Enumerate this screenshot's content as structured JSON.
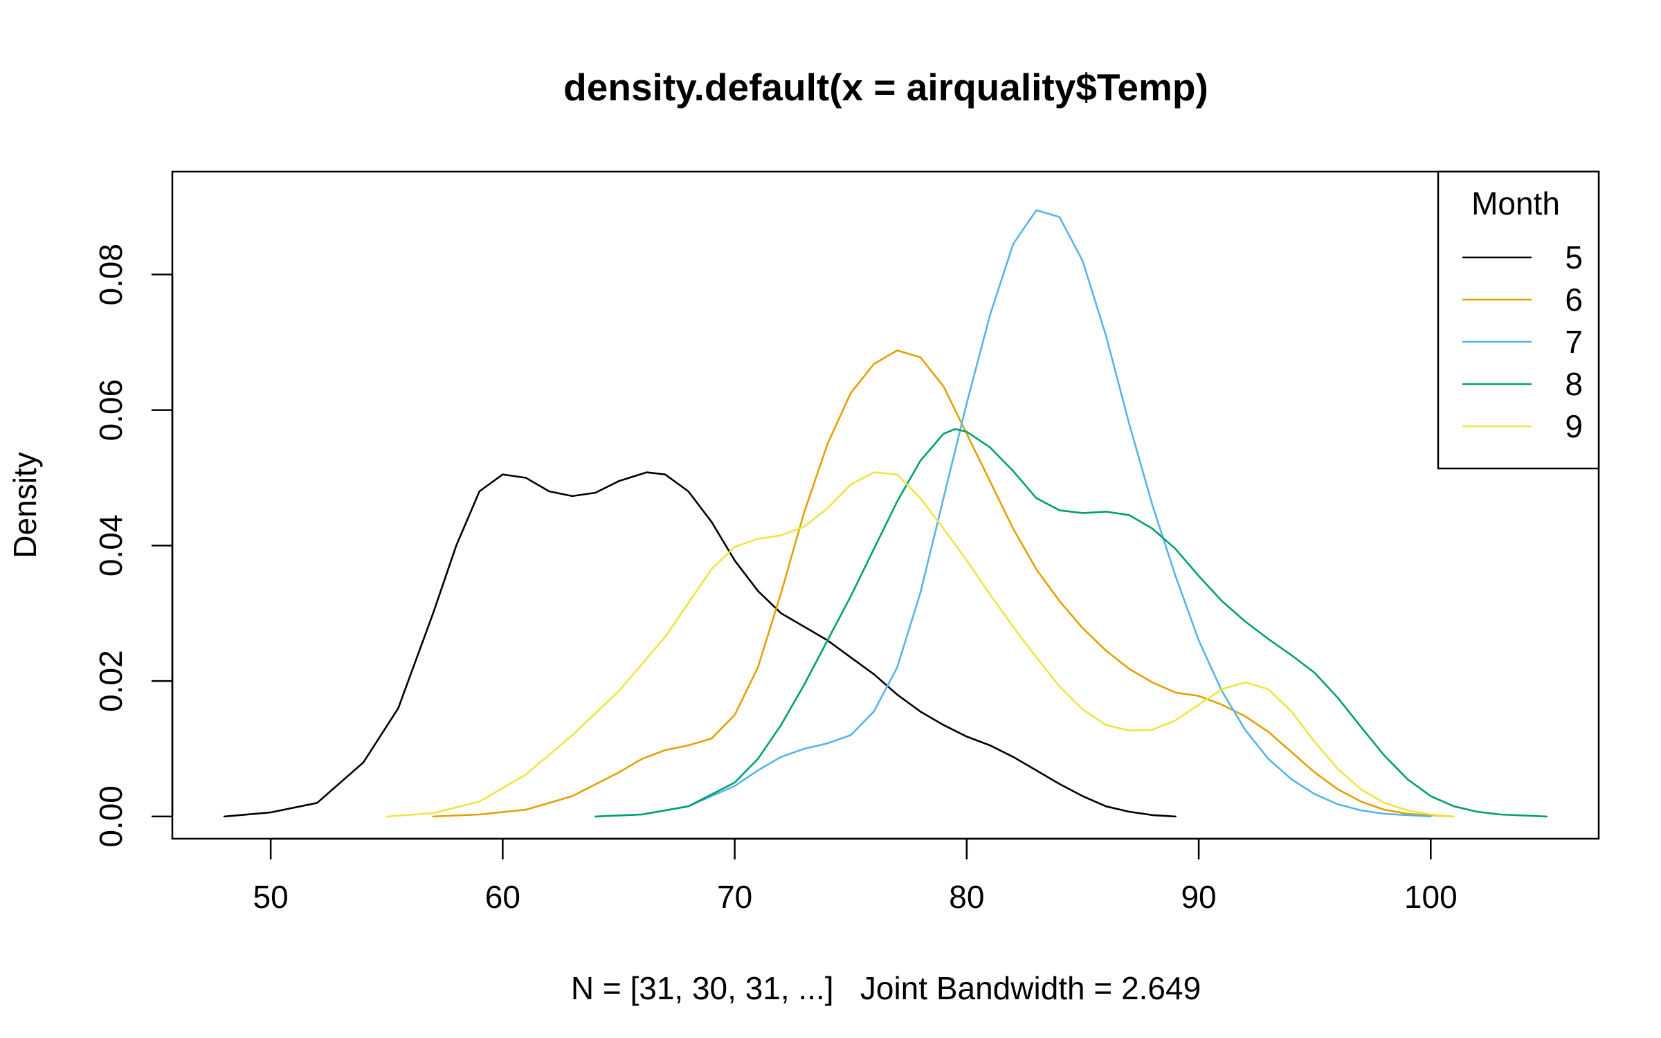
{
  "chart_data": {
    "type": "line",
    "title": "density.default(x = airquality$Temp)",
    "xlabel": "N = [31, 30, 31, ...]   Joint Bandwidth = 2.649",
    "ylabel": "Density",
    "xlim": [
      45.76,
      107.24
    ],
    "ylim": [
      -0.00328,
      0.0952
    ],
    "x_ticks": [
      50,
      60,
      70,
      80,
      90,
      100
    ],
    "x_tick_labels": [
      "50",
      "60",
      "70",
      "80",
      "90",
      "100"
    ],
    "y_ticks": [
      0.0,
      0.02,
      0.04,
      0.06,
      0.08
    ],
    "y_tick_labels": [
      "0.00",
      "0.02",
      "0.04",
      "0.06",
      "0.08"
    ],
    "grid": false,
    "legend": {
      "title": "Month",
      "position": "top-right"
    },
    "series": [
      {
        "name": "5",
        "color": "#000000",
        "points": [
          [
            48.0,
            0.0
          ],
          [
            50.0,
            0.0006
          ],
          [
            52.0,
            0.002
          ],
          [
            54.0,
            0.008
          ],
          [
            55.5,
            0.016
          ],
          [
            57.0,
            0.03
          ],
          [
            58.0,
            0.04
          ],
          [
            59.0,
            0.048
          ],
          [
            60.0,
            0.0505
          ],
          [
            61.0,
            0.05
          ],
          [
            62.0,
            0.048
          ],
          [
            63.0,
            0.0473
          ],
          [
            64.0,
            0.0478
          ],
          [
            65.0,
            0.0495
          ],
          [
            66.2,
            0.0508
          ],
          [
            67.0,
            0.0505
          ],
          [
            68.0,
            0.048
          ],
          [
            69.0,
            0.0435
          ],
          [
            70.0,
            0.0378
          ],
          [
            71.0,
            0.0333
          ],
          [
            72.0,
            0.03
          ],
          [
            73.0,
            0.028
          ],
          [
            74.0,
            0.026
          ],
          [
            75.0,
            0.0235
          ],
          [
            76.0,
            0.021
          ],
          [
            77.0,
            0.018
          ],
          [
            78.0,
            0.0155
          ],
          [
            79.0,
            0.0135
          ],
          [
            80.0,
            0.0118
          ],
          [
            81.0,
            0.0105
          ],
          [
            82.0,
            0.0088
          ],
          [
            83.0,
            0.0068
          ],
          [
            84.0,
            0.0048
          ],
          [
            85.0,
            0.003
          ],
          [
            86.0,
            0.0015
          ],
          [
            87.0,
            0.0007
          ],
          [
            88.0,
            0.0002
          ],
          [
            89.0,
            0.0
          ]
        ]
      },
      {
        "name": "6",
        "color": "#E69F00",
        "points": [
          [
            57.0,
            0.0
          ],
          [
            59.0,
            0.0003
          ],
          [
            61.0,
            0.001
          ],
          [
            63.0,
            0.003
          ],
          [
            65.0,
            0.0065
          ],
          [
            66.0,
            0.0085
          ],
          [
            67.0,
            0.0098
          ],
          [
            68.0,
            0.0105
          ],
          [
            69.0,
            0.0115
          ],
          [
            70.0,
            0.015
          ],
          [
            71.0,
            0.022
          ],
          [
            72.0,
            0.033
          ],
          [
            73.0,
            0.045
          ],
          [
            74.0,
            0.055
          ],
          [
            75.0,
            0.0625
          ],
          [
            76.0,
            0.0668
          ],
          [
            77.0,
            0.0688
          ],
          [
            78.0,
            0.0678
          ],
          [
            79.0,
            0.0635
          ],
          [
            80.0,
            0.0565
          ],
          [
            81.0,
            0.0495
          ],
          [
            82.0,
            0.0425
          ],
          [
            83.0,
            0.0365
          ],
          [
            84.0,
            0.0318
          ],
          [
            85.0,
            0.0278
          ],
          [
            86.0,
            0.0245
          ],
          [
            87.0,
            0.0218
          ],
          [
            88.0,
            0.0198
          ],
          [
            89.0,
            0.0183
          ],
          [
            90.0,
            0.0178
          ],
          [
            91.0,
            0.0165
          ],
          [
            92.0,
            0.0148
          ],
          [
            93.0,
            0.0125
          ],
          [
            94.0,
            0.0095
          ],
          [
            95.0,
            0.0065
          ],
          [
            96.0,
            0.004
          ],
          [
            97.0,
            0.0022
          ],
          [
            98.0,
            0.001
          ],
          [
            99.0,
            0.0004
          ],
          [
            101.0,
            0.0
          ]
        ]
      },
      {
        "name": "7",
        "color": "#56B4E9",
        "points": [
          [
            64.0,
            0.0
          ],
          [
            66.0,
            0.0003
          ],
          [
            68.0,
            0.0015
          ],
          [
            70.0,
            0.0045
          ],
          [
            71.0,
            0.0068
          ],
          [
            72.0,
            0.0088
          ],
          [
            73.0,
            0.01
          ],
          [
            74.0,
            0.0108
          ],
          [
            75.0,
            0.012
          ],
          [
            76.0,
            0.0155
          ],
          [
            77.0,
            0.022
          ],
          [
            78.0,
            0.033
          ],
          [
            79.0,
            0.047
          ],
          [
            80.0,
            0.061
          ],
          [
            81.0,
            0.074
          ],
          [
            82.0,
            0.0845
          ],
          [
            83.0,
            0.0895
          ],
          [
            84.0,
            0.0885
          ],
          [
            85.0,
            0.082
          ],
          [
            86.0,
            0.071
          ],
          [
            87.0,
            0.058
          ],
          [
            88.0,
            0.046
          ],
          [
            89.0,
            0.0355
          ],
          [
            90.0,
            0.026
          ],
          [
            91.0,
            0.0185
          ],
          [
            92.0,
            0.0128
          ],
          [
            93.0,
            0.0085
          ],
          [
            94.0,
            0.0055
          ],
          [
            95.0,
            0.0033
          ],
          [
            96.0,
            0.0018
          ],
          [
            97.0,
            0.0009
          ],
          [
            98.0,
            0.0004
          ],
          [
            100.0,
            0.0
          ]
        ]
      },
      {
        "name": "8",
        "color": "#009E73",
        "points": [
          [
            64.0,
            0.0
          ],
          [
            66.0,
            0.0003
          ],
          [
            68.0,
            0.0015
          ],
          [
            70.0,
            0.005
          ],
          [
            71.0,
            0.0085
          ],
          [
            72.0,
            0.0135
          ],
          [
            73.0,
            0.0195
          ],
          [
            74.0,
            0.026
          ],
          [
            75.0,
            0.0325
          ],
          [
            76.0,
            0.0395
          ],
          [
            77.0,
            0.0465
          ],
          [
            78.0,
            0.0525
          ],
          [
            79.0,
            0.0565
          ],
          [
            79.5,
            0.0572
          ],
          [
            80.0,
            0.0568
          ],
          [
            81.0,
            0.0545
          ],
          [
            82.0,
            0.051
          ],
          [
            83.0,
            0.047
          ],
          [
            84.0,
            0.0452
          ],
          [
            85.0,
            0.0448
          ],
          [
            86.0,
            0.045
          ],
          [
            87.0,
            0.0445
          ],
          [
            88.0,
            0.0425
          ],
          [
            89.0,
            0.0395
          ],
          [
            90.0,
            0.0355
          ],
          [
            91.0,
            0.0318
          ],
          [
            92.0,
            0.0288
          ],
          [
            93.0,
            0.0262
          ],
          [
            94.0,
            0.0238
          ],
          [
            95.0,
            0.0212
          ],
          [
            96.0,
            0.0175
          ],
          [
            97.0,
            0.0132
          ],
          [
            98.0,
            0.009
          ],
          [
            99.0,
            0.0055
          ],
          [
            100.0,
            0.003
          ],
          [
            101.0,
            0.0015
          ],
          [
            102.0,
            0.0007
          ],
          [
            103.0,
            0.0003
          ],
          [
            105.0,
            0.0
          ]
        ]
      },
      {
        "name": "9",
        "color": "#F0E442",
        "points": [
          [
            55.0,
            0.0
          ],
          [
            57.0,
            0.0005
          ],
          [
            59.0,
            0.0022
          ],
          [
            61.0,
            0.0062
          ],
          [
            63.0,
            0.012
          ],
          [
            65.0,
            0.0185
          ],
          [
            67.0,
            0.0265
          ],
          [
            68.0,
            0.0315
          ],
          [
            69.0,
            0.0365
          ],
          [
            70.0,
            0.0398
          ],
          [
            71.0,
            0.041
          ],
          [
            72.0,
            0.0415
          ],
          [
            73.0,
            0.0428
          ],
          [
            74.0,
            0.0455
          ],
          [
            75.0,
            0.049
          ],
          [
            76.0,
            0.0508
          ],
          [
            77.0,
            0.0505
          ],
          [
            78.0,
            0.047
          ],
          [
            79.0,
            0.0425
          ],
          [
            80.0,
            0.0378
          ],
          [
            81.0,
            0.0328
          ],
          [
            82.0,
            0.028
          ],
          [
            83.0,
            0.0235
          ],
          [
            84.0,
            0.0192
          ],
          [
            85.0,
            0.0158
          ],
          [
            86.0,
            0.0135
          ],
          [
            87.0,
            0.0127
          ],
          [
            88.0,
            0.0128
          ],
          [
            89.0,
            0.0142
          ],
          [
            90.0,
            0.0165
          ],
          [
            91.0,
            0.0188
          ],
          [
            92.0,
            0.0198
          ],
          [
            93.0,
            0.0188
          ],
          [
            94.0,
            0.0155
          ],
          [
            95.0,
            0.011
          ],
          [
            96.0,
            0.007
          ],
          [
            97.0,
            0.004
          ],
          [
            98.0,
            0.002
          ],
          [
            99.0,
            0.0009
          ],
          [
            100.0,
            0.0003
          ],
          [
            101.0,
            0.0
          ]
        ]
      }
    ]
  }
}
